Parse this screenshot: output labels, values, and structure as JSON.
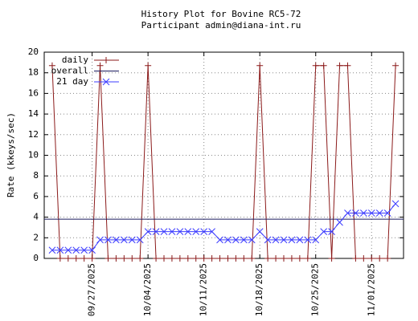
{
  "chart_data": {
    "type": "line",
    "title": "History Plot for Bovine RC5-72",
    "subtitle": "Participant admin@diana-int.ru",
    "y_label": "Rate (kkeys/sec)",
    "x": [
      "2025-09-22",
      "2025-09-23",
      "2025-09-24",
      "2025-09-25",
      "2025-09-26",
      "2025-09-27",
      "2025-09-28",
      "2025-09-29",
      "2025-09-30",
      "2025-10-01",
      "2025-10-02",
      "2025-10-03",
      "2025-10-04",
      "2025-10-05",
      "2025-10-06",
      "2025-10-07",
      "2025-10-08",
      "2025-10-09",
      "2025-10-10",
      "2025-10-11",
      "2025-10-12",
      "2025-10-13",
      "2025-10-14",
      "2025-10-15",
      "2025-10-16",
      "2025-10-17",
      "2025-10-18",
      "2025-10-19",
      "2025-10-20",
      "2025-10-21",
      "2025-10-22",
      "2025-10-23",
      "2025-10-24",
      "2025-10-25",
      "2025-10-26",
      "2025-10-27",
      "2025-10-28",
      "2025-10-29",
      "2025-10-30",
      "2025-10-31",
      "2025-11-01",
      "2025-11-02",
      "2025-11-03",
      "2025-11-04"
    ],
    "series": [
      {
        "name": "daily",
        "color": "#8b1a1a",
        "marker": "plus",
        "values": [
          18.7,
          0,
          0,
          0,
          0,
          0,
          18.7,
          0,
          0,
          0,
          0,
          0,
          18.7,
          0,
          0,
          0,
          0,
          0,
          0,
          0,
          0,
          0,
          0,
          0,
          0,
          0,
          18.7,
          0,
          0,
          0,
          0,
          0,
          0,
          18.7,
          18.7,
          0,
          18.7,
          18.7,
          0,
          0,
          0,
          0,
          0,
          18.7
        ]
      },
      {
        "name": "overall",
        "color": "#1a1a5e",
        "value": 3.8
      },
      {
        "name": "21 day",
        "color": "#3c3cff",
        "marker": "cross",
        "values": [
          0.8,
          0.8,
          0.8,
          0.8,
          0.8,
          0.8,
          1.8,
          1.8,
          1.8,
          1.8,
          1.8,
          1.8,
          2.6,
          2.6,
          2.6,
          2.6,
          2.6,
          2.6,
          2.6,
          2.6,
          2.6,
          1.8,
          1.8,
          1.8,
          1.8,
          1.8,
          2.6,
          1.8,
          1.8,
          1.8,
          1.8,
          1.8,
          1.8,
          1.8,
          2.6,
          2.6,
          3.5,
          4.4,
          4.4,
          4.4,
          4.4,
          4.4,
          4.4,
          5.3
        ]
      }
    ],
    "xlim": [
      "2025-09-21",
      "2025-11-05"
    ],
    "xticks": [
      {
        "value": "2025-09-27",
        "label": "09/27/2025"
      },
      {
        "value": "2025-10-04",
        "label": "10/04/2025"
      },
      {
        "value": "2025-10-11",
        "label": "10/11/2025"
      },
      {
        "value": "2025-10-18",
        "label": "10/18/2025"
      },
      {
        "value": "2025-10-25",
        "label": "10/25/2025"
      },
      {
        "value": "2025-11-01",
        "label": "11/01/2025"
      }
    ],
    "ylim": [
      0,
      20
    ],
    "yticks": [
      0,
      2,
      4,
      6,
      8,
      10,
      12,
      14,
      16,
      18,
      20
    ],
    "grid": true,
    "legend": "top-left"
  }
}
